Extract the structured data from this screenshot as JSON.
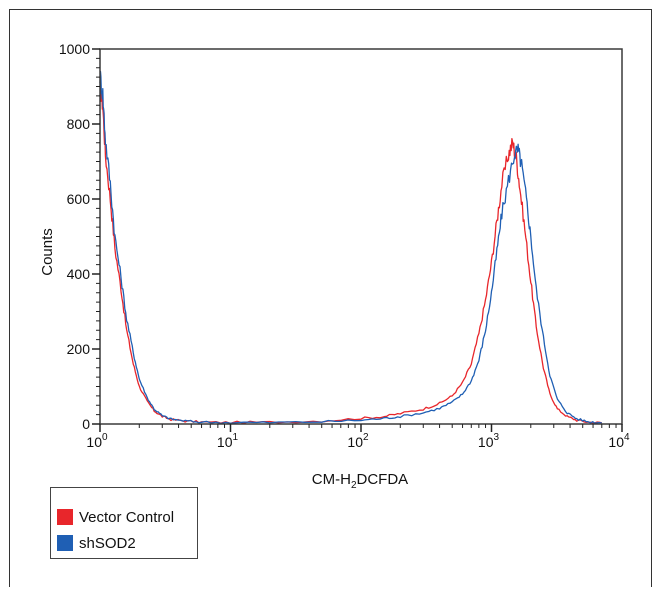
{
  "chart_data": {
    "type": "line",
    "ylabel": "Counts",
    "xlabel": {
      "prefix": "CM-H",
      "subscript": "2",
      "suffix": "DCFDA"
    },
    "xscale": "log",
    "xlim": [
      1,
      10000
    ],
    "ylim": [
      0,
      1000
    ],
    "x_ticks": [
      {
        "value": 1,
        "base": "10",
        "exp": "0"
      },
      {
        "value": 10,
        "base": "10",
        "exp": "1"
      },
      {
        "value": 100,
        "base": "10",
        "exp": "2"
      },
      {
        "value": 1000,
        "base": "10",
        "exp": "3"
      },
      {
        "value": 10000,
        "base": "10",
        "exp": "4"
      }
    ],
    "y_ticks": [
      {
        "value": 0,
        "label": "0"
      },
      {
        "value": 200,
        "label": "200"
      },
      {
        "value": 400,
        "label": "400"
      },
      {
        "value": 600,
        "label": "600"
      },
      {
        "value": 800,
        "label": "800"
      },
      {
        "value": 1000,
        "label": "1000"
      }
    ],
    "legend_position": "bottom-left, outside plot",
    "series": [
      {
        "name": "Vector Control",
        "color": "#e8262b",
        "x": [
          1,
          1.05,
          1.1,
          1.2,
          1.3,
          1.45,
          1.6,
          1.8,
          2.0,
          2.3,
          2.6,
          3.0,
          3.5,
          4.5,
          6,
          10,
          20,
          50,
          100,
          150,
          200,
          300,
          400,
          500,
          600,
          700,
          800,
          900,
          1000,
          1100,
          1200,
          1350,
          1450,
          1550,
          1650,
          1800,
          2000,
          2200,
          2500,
          2800,
          3200,
          3800,
          4500,
          5500,
          7000
        ],
        "y": [
          900,
          850,
          720,
          600,
          470,
          360,
          250,
          160,
          100,
          60,
          35,
          20,
          12,
          8,
          5,
          4,
          5,
          8,
          15,
          20,
          28,
          40,
          55,
          75,
          110,
          160,
          240,
          330,
          430,
          540,
          640,
          720,
          750,
          710,
          630,
          520,
          380,
          260,
          150,
          80,
          40,
          20,
          10,
          5,
          3
        ]
      },
      {
        "name": "shSOD2",
        "color": "#1f5fb4",
        "x": [
          1,
          1.05,
          1.1,
          1.2,
          1.3,
          1.45,
          1.6,
          1.8,
          2.0,
          2.3,
          2.6,
          3.0,
          3.5,
          4.5,
          6,
          10,
          20,
          50,
          100,
          150,
          200,
          300,
          400,
          500,
          600,
          700,
          800,
          900,
          1000,
          1100,
          1200,
          1350,
          1500,
          1600,
          1700,
          1850,
          2000,
          2200,
          2500,
          2800,
          3200,
          3800,
          4500,
          5500,
          7000
        ],
        "y": [
          930,
          880,
          760,
          640,
          500,
          390,
          280,
          190,
          120,
          70,
          40,
          22,
          13,
          8,
          5,
          4,
          4,
          6,
          10,
          15,
          20,
          30,
          42,
          58,
          80,
          115,
          170,
          250,
          350,
          460,
          560,
          650,
          720,
          730,
          690,
          600,
          500,
          360,
          230,
          130,
          65,
          30,
          14,
          6,
          3
        ]
      }
    ]
  }
}
